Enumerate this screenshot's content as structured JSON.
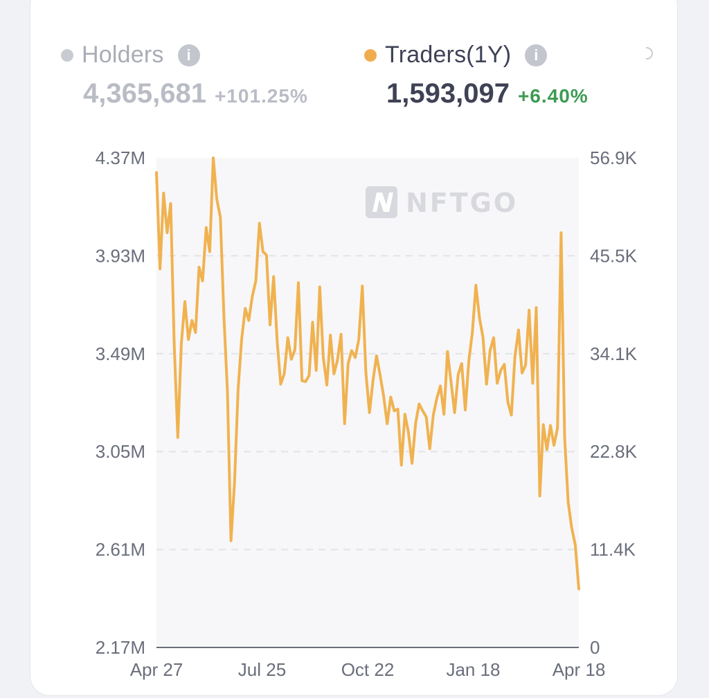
{
  "legend": {
    "holders": {
      "label": "Holders",
      "value": "4,365,681",
      "change": "+101.25%",
      "dot_color": "#c9cbd2"
    },
    "traders": {
      "label": "Traders(1Y)",
      "value": "1,593,097",
      "change": "+6.40%",
      "dot_color": "#f0ad4e"
    }
  },
  "watermark": "NFTGO",
  "colors": {
    "line": "#f0b250",
    "change_positive": "#3d9a52",
    "plot_bg": "#f7f7f9"
  },
  "chart_data": {
    "type": "line",
    "title": "",
    "xlabel": "",
    "ylabel": "",
    "x_tick_labels": [
      "Apr 27",
      "Jul 25",
      "Oct 22",
      "Jan 18",
      "Apr 18"
    ],
    "left_axis": {
      "series": "Holders",
      "ticks": [
        "4.37M",
        "3.93M",
        "3.49M",
        "3.05M",
        "2.61M",
        "2.17M"
      ],
      "range": [
        2.17,
        4.37
      ],
      "unit": "M"
    },
    "right_axis": {
      "series": "Traders(1Y)",
      "ticks": [
        "56.9K",
        "45.5K",
        "34.1K",
        "22.8K",
        "11.4K",
        "0"
      ],
      "range": [
        0,
        56.9
      ],
      "unit": "K"
    },
    "grid": "horizontal dashed",
    "series": [
      {
        "name": "Traders(1Y)",
        "axis": "right",
        "unit": "K",
        "values": [
          55.2,
          44.0,
          52.8,
          48.2,
          51.6,
          35.2,
          24.4,
          35.3,
          40.2,
          35.8,
          38.0,
          36.6,
          44.2,
          42.6,
          48.8,
          46.0,
          56.9,
          52.1,
          50.0,
          38.5,
          29.7,
          12.4,
          19.3,
          30.0,
          35.8,
          39.4,
          38.0,
          40.8,
          42.6,
          49.3,
          46.0,
          45.6,
          37.5,
          43.1,
          35.6,
          30.6,
          31.8,
          36.0,
          33.5,
          34.6,
          42.4,
          31.0,
          30.9,
          31.6,
          37.8,
          32.2,
          41.9,
          33.7,
          30.5,
          36.3,
          31.8,
          33.4,
          36.4,
          26.0,
          33.0,
          34.5,
          33.7,
          35.8,
          42.0,
          32.0,
          27.3,
          31.0,
          33.9,
          31.7,
          29.2,
          26.0,
          29.1,
          27.5,
          27.7,
          21.2,
          27.1,
          25.0,
          21.4,
          26.0,
          28.3,
          27.5,
          26.8,
          23.1,
          27.0,
          29.0,
          30.4,
          27.1,
          34.4,
          30.8,
          27.3,
          31.7,
          33.0,
          27.6,
          33.3,
          36.6,
          42.1,
          38.3,
          36.0,
          30.6,
          34.5,
          36.0,
          30.7,
          32.2,
          32.9,
          28.5,
          27.0,
          33.8,
          36.9,
          31.9,
          32.8,
          39.2,
          30.7,
          39.5,
          17.6,
          25.9,
          23.0,
          25.8,
          23.5,
          25.5,
          48.2,
          24.4,
          16.9,
          13.9,
          11.9,
          6.8
        ]
      }
    ]
  }
}
